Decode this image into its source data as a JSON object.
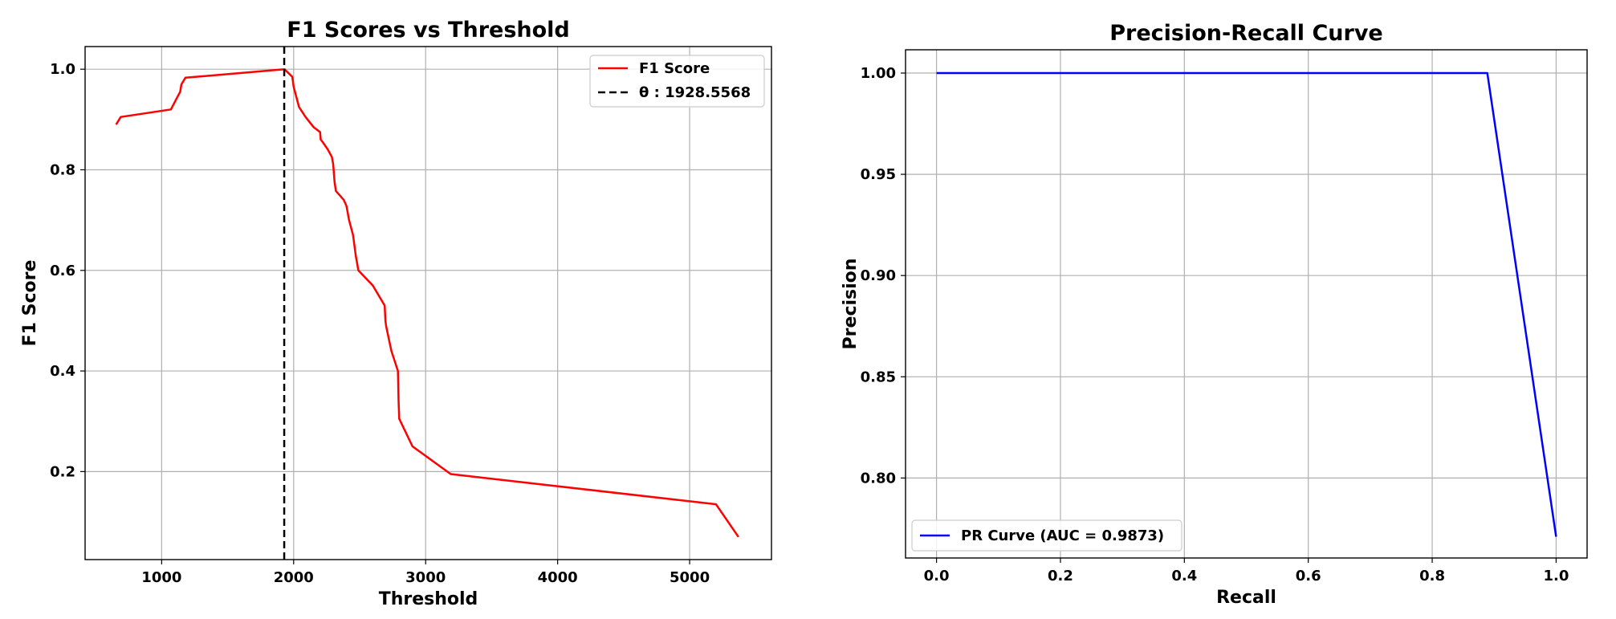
{
  "chart_data": [
    {
      "type": "line",
      "title": "F1 Scores vs Threshold",
      "xlabel": "Threshold",
      "ylabel": "F1 Score",
      "xlim": [
        420,
        5620
      ],
      "ylim": [
        0.025,
        1.045
      ],
      "xticks": [
        1000,
        2000,
        3000,
        4000,
        5000
      ],
      "xtick_labels": [
        "1000",
        "2000",
        "3000",
        "4000",
        "5000"
      ],
      "yticks": [
        0.2,
        0.4,
        0.6,
        0.8,
        1.0
      ],
      "ytick_labels": [
        "0.2",
        "0.4",
        "0.6",
        "0.8",
        "1.0"
      ],
      "grid": true,
      "legend_position": "top-right",
      "series": [
        {
          "name": "F1 Score",
          "color": "#ff0000",
          "style": "solid",
          "x": [
            655,
            690,
            1070,
            1120,
            1140,
            1150,
            1180,
            1930,
            1990,
            2000,
            2020,
            2040,
            2090,
            2150,
            2200,
            2205,
            2220,
            2260,
            2290,
            2300,
            2310,
            2320,
            2380,
            2400,
            2420,
            2450,
            2470,
            2490,
            2600,
            2690,
            2695,
            2700,
            2740,
            2790,
            2795,
            2800,
            2900,
            3190,
            5200,
            5370
          ],
          "y": [
            0.89,
            0.905,
            0.92,
            0.945,
            0.955,
            0.97,
            0.983,
            1.0,
            0.985,
            0.965,
            0.945,
            0.925,
            0.905,
            0.885,
            0.875,
            0.86,
            0.855,
            0.84,
            0.825,
            0.81,
            0.775,
            0.758,
            0.74,
            0.728,
            0.7,
            0.67,
            0.63,
            0.6,
            0.57,
            0.53,
            0.5,
            0.49,
            0.44,
            0.4,
            0.34,
            0.305,
            0.25,
            0.195,
            0.135,
            0.07
          ]
        }
      ],
      "threshold_line": {
        "label": "θ : 1928.5568",
        "x": 1928.5568,
        "color": "#000000",
        "style": "dashed"
      }
    },
    {
      "type": "line",
      "title": "Precision-Recall Curve",
      "xlabel": "Recall",
      "ylabel": "Precision",
      "xlim": [
        -0.05,
        1.05
      ],
      "ylim": [
        0.7605,
        1.0115
      ],
      "xticks": [
        0.0,
        0.2,
        0.4,
        0.6,
        0.8,
        1.0
      ],
      "xtick_labels": [
        "0.0",
        "0.2",
        "0.4",
        "0.6",
        "0.8",
        "1.0"
      ],
      "yticks": [
        0.8,
        0.85,
        0.9,
        0.95,
        1.0
      ],
      "ytick_labels": [
        "0.80",
        "0.85",
        "0.90",
        "0.95",
        "1.00"
      ],
      "grid": true,
      "legend_position": "bottom-left",
      "series": [
        {
          "name": "PR Curve (AUC = 0.9873)",
          "color": "#0000ff",
          "style": "solid",
          "x": [
            0.0,
            0.889,
            1.0
          ],
          "y": [
            1.0,
            1.0,
            0.771
          ]
        }
      ]
    }
  ]
}
